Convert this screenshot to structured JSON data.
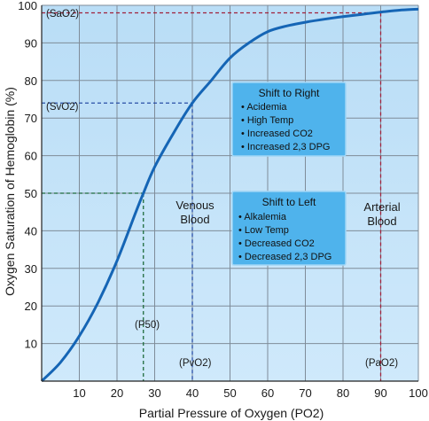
{
  "colors": {
    "plot_top": "#b9ddf6",
    "plot_bottom": "#cfe9fb",
    "grid": "#7f8c99",
    "curve": "#1565b5",
    "sao2": "#a0203a",
    "svo2": "#2a4fa6",
    "p50": "#1e6b3c",
    "box_fill": "#4fb3ec",
    "box_border": "#9fd6f6"
  },
  "labels": {
    "sao2": "(SaO2)",
    "svo2": "(SvO2)",
    "p50": "(P50)",
    "pvo2": "(PvO2)",
    "pao2": "(PaO2)",
    "venous_line1": "Venous",
    "venous_line2": "Blood",
    "arterial_line1": "Arterial",
    "arterial_line2": "Blood"
  },
  "boxes": {
    "right": {
      "title": "Shift to Right",
      "items": [
        "Acidemia",
        "High Temp",
        "Increased CO2",
        "Increased 2,3 DPG"
      ]
    },
    "left": {
      "title": "Shift to Left",
      "items": [
        "Alkalemia",
        "Low Temp",
        "Decreased CO2",
        "Decreased 2,3 DPG"
      ]
    }
  },
  "chart_data": {
    "type": "line",
    "xlabel": "Partial Pressure of Oxygen (PO2)",
    "ylabel": "Oxygen Saturation of Hemoglobin (%)",
    "xlim": [
      0,
      100
    ],
    "ylim": [
      0,
      100
    ],
    "xticks": [
      10,
      20,
      30,
      40,
      50,
      60,
      70,
      80,
      90,
      100
    ],
    "yticks": [
      10,
      20,
      30,
      40,
      50,
      60,
      70,
      80,
      90,
      100
    ],
    "grid": true,
    "series": [
      {
        "x": [
          0,
          5,
          10,
          15,
          20,
          25,
          27,
          30,
          35,
          40,
          45,
          50,
          55,
          60,
          65,
          70,
          75,
          80,
          85,
          90,
          95,
          100
        ],
        "values": [
          0,
          5,
          12,
          21,
          32,
          45,
          50,
          57,
          66,
          74,
          80,
          86,
          90,
          93,
          94.5,
          95.5,
          96.3,
          97,
          97.6,
          98.2,
          98.7,
          99
        ]
      }
    ],
    "reference_points": [
      {
        "label": "SaO2",
        "x": 90,
        "y": 98
      },
      {
        "label": "SvO2",
        "x": 40,
        "y": 74
      },
      {
        "label": "P50",
        "x": 27,
        "y": 50
      }
    ]
  }
}
